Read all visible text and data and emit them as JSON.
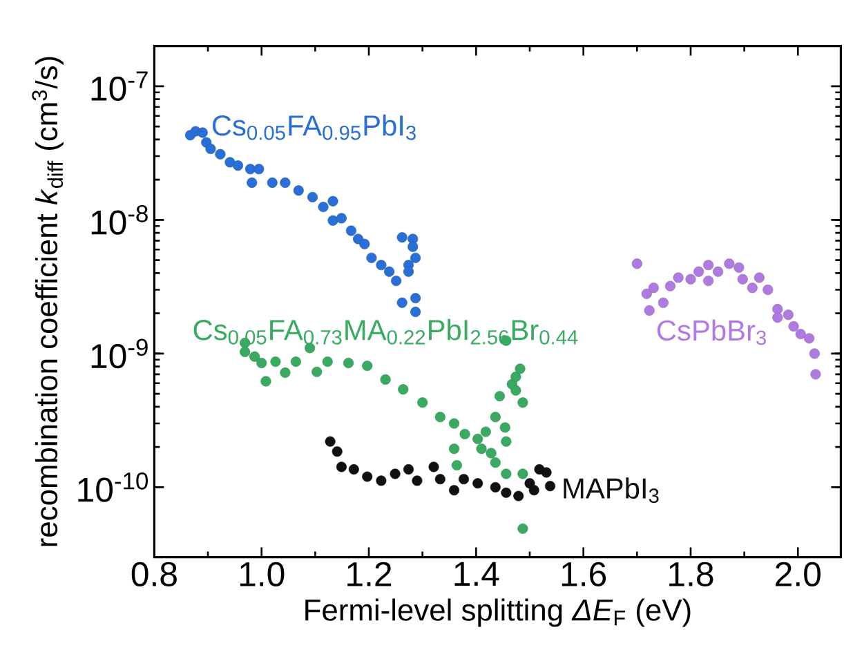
{
  "chart_data": {
    "type": "scatter",
    "xlabel": "Fermi-level splitting *ΔE*$_{F}$ (eV)",
    "ylabel": "recombination coefficient *k*$_{diff}$ (cm$^{3}$/s)",
    "log": "y",
    "xlim": [
      0.8,
      2.08
    ],
    "ylim": [
      3e-11,
      2e-07
    ],
    "xticks": [
      0.8,
      {
        "value": 1.0,
        "label": "1.0"
      },
      1.2,
      1.4,
      1.6,
      1.8,
      {
        "value": 2.0,
        "label": "2.0"
      }
    ],
    "yticks": [
      {
        "value": 1e-10,
        "label": "10$^{-10}$"
      },
      {
        "value": 1e-09,
        "label": "10$^{-9}$"
      },
      {
        "value": 1e-08,
        "label": "10$^{-8}$"
      },
      {
        "value": 1e-07,
        "label": "10$^{-7}$"
      }
    ],
    "series": [
      {
        "name": "Cs$_{0.05}$FA$_{0.95}$PbI$_{3}$",
        "color": "#2a6fd6",
        "x": [
          0.867,
          0.877,
          0.89,
          0.897,
          0.905,
          0.923,
          0.941,
          0.956,
          0.979,
          0.982,
          0.995,
          1.02,
          1.044,
          1.069,
          1.095,
          1.115,
          1.133,
          1.133,
          1.149,
          1.167,
          1.18,
          1.192,
          1.205,
          1.223,
          1.238,
          1.251,
          1.262,
          1.282,
          1.282,
          1.287,
          1.274,
          1.274,
          1.262,
          1.287,
          1.287
        ],
        "values": [
          4.3e-08,
          4.6e-08,
          4.5e-08,
          3.8e-08,
          3.4e-08,
          3.1e-08,
          2.7e-08,
          2.55e-08,
          2.4e-08,
          1.9e-08,
          2.4e-08,
          1.9e-08,
          1.9e-08,
          1.66e-08,
          1.48e-08,
          1.25e-08,
          1.38e-08,
          9.9e-09,
          1.03e-08,
          8.3e-09,
          7.2e-09,
          6.6e-09,
          5.2e-09,
          4.6e-09,
          4.1e-09,
          3.5e-09,
          7.4e-09,
          7.2e-09,
          6.3e-09,
          5.2e-09,
          4.6e-09,
          4.1e-09,
          2.4e-09,
          2.6e-09,
          2.05e-09
        ]
      },
      {
        "name": "Cs$_{0.05}$FA$_{0.73}$MA$_{0.22}$PbI$_{2.56}$Br$_{0.44}$",
        "color": "#3aaa63",
        "x": [
          0.969,
          0.969,
          0.987,
          1.0,
          1.008,
          1.026,
          1.044,
          1.064,
          1.09,
          1.103,
          1.123,
          1.162,
          1.197,
          1.231,
          1.264,
          1.3,
          1.333,
          1.359,
          1.379,
          1.403,
          1.418,
          1.41,
          1.359,
          1.364,
          1.428,
          1.436,
          1.436,
          1.444,
          1.454,
          1.456,
          1.456,
          1.456,
          1.467,
          1.474,
          1.482,
          1.487,
          1.487,
          1.487,
          1.474
        ],
        "values": [
          1.2e-09,
          1.03e-09,
          9.5e-10,
          8.5e-10,
          6.2e-10,
          8.7e-10,
          7.2e-10,
          8.7e-10,
          1.1e-09,
          7.3e-10,
          8.7e-10,
          8.5e-10,
          8.1e-10,
          6.4e-10,
          5.4e-10,
          4.3e-10,
          3.35e-10,
          3e-10,
          2.5e-10,
          2.3e-10,
          2.6e-10,
          1.94e-10,
          1.94e-10,
          1.46e-10,
          1.8e-10,
          1.53e-10,
          3.35e-10,
          4.8e-10,
          2.8e-10,
          2.2e-10,
          1.26e-10,
          1.25e-09,
          5.9e-10,
          6.7e-10,
          7.7e-10,
          4.3e-10,
          1.26e-10,
          4.9e-11,
          5.3e-10
        ]
      },
      {
        "name": "MAPbI$_{3}$",
        "color": "#111111",
        "x": [
          1.128,
          1.141,
          1.149,
          1.172,
          1.197,
          1.223,
          1.249,
          1.274,
          1.29,
          1.321,
          1.333,
          1.359,
          1.377,
          1.403,
          1.436,
          1.456,
          1.479,
          1.5,
          1.508,
          1.518,
          1.538,
          1.531
        ],
        "values": [
          2.2e-10,
          1.85e-10,
          1.42e-10,
          1.36e-10,
          1.2e-10,
          1.12e-10,
          1.26e-10,
          1.36e-10,
          1.12e-10,
          1.42e-10,
          1.15e-10,
          9.5e-11,
          1.15e-10,
          1.07e-10,
          1e-10,
          9.1e-11,
          8.6e-11,
          1.07e-10,
          9.5e-11,
          1.36e-10,
          1.02e-10,
          1.29e-10
        ]
      },
      {
        "name": "CsPbBr$_{3}$",
        "color": "#b07be0",
        "x": [
          1.7,
          1.718,
          1.731,
          1.723,
          1.749,
          1.762,
          1.777,
          1.8,
          1.815,
          1.833,
          1.833,
          1.851,
          1.872,
          1.89,
          1.897,
          1.915,
          1.928,
          1.944,
          1.962,
          1.962,
          1.982,
          1.992,
          2.005,
          2.021,
          2.031,
          2.033
        ],
        "values": [
          4.7e-09,
          2.8e-09,
          3.1e-09,
          2.1e-09,
          2.4e-09,
          3.2e-09,
          3.7e-09,
          3.6e-09,
          4.1e-09,
          4.6e-09,
          3.5e-09,
          4.1e-09,
          4.7e-09,
          4.4e-09,
          3.6e-09,
          3.1e-09,
          3.7e-09,
          3e-09,
          2.15e-09,
          1.86e-09,
          1.95e-09,
          1.6e-09,
          1.4e-09,
          1.3e-09,
          1e-09,
          7e-10
        ]
      }
    ]
  }
}
